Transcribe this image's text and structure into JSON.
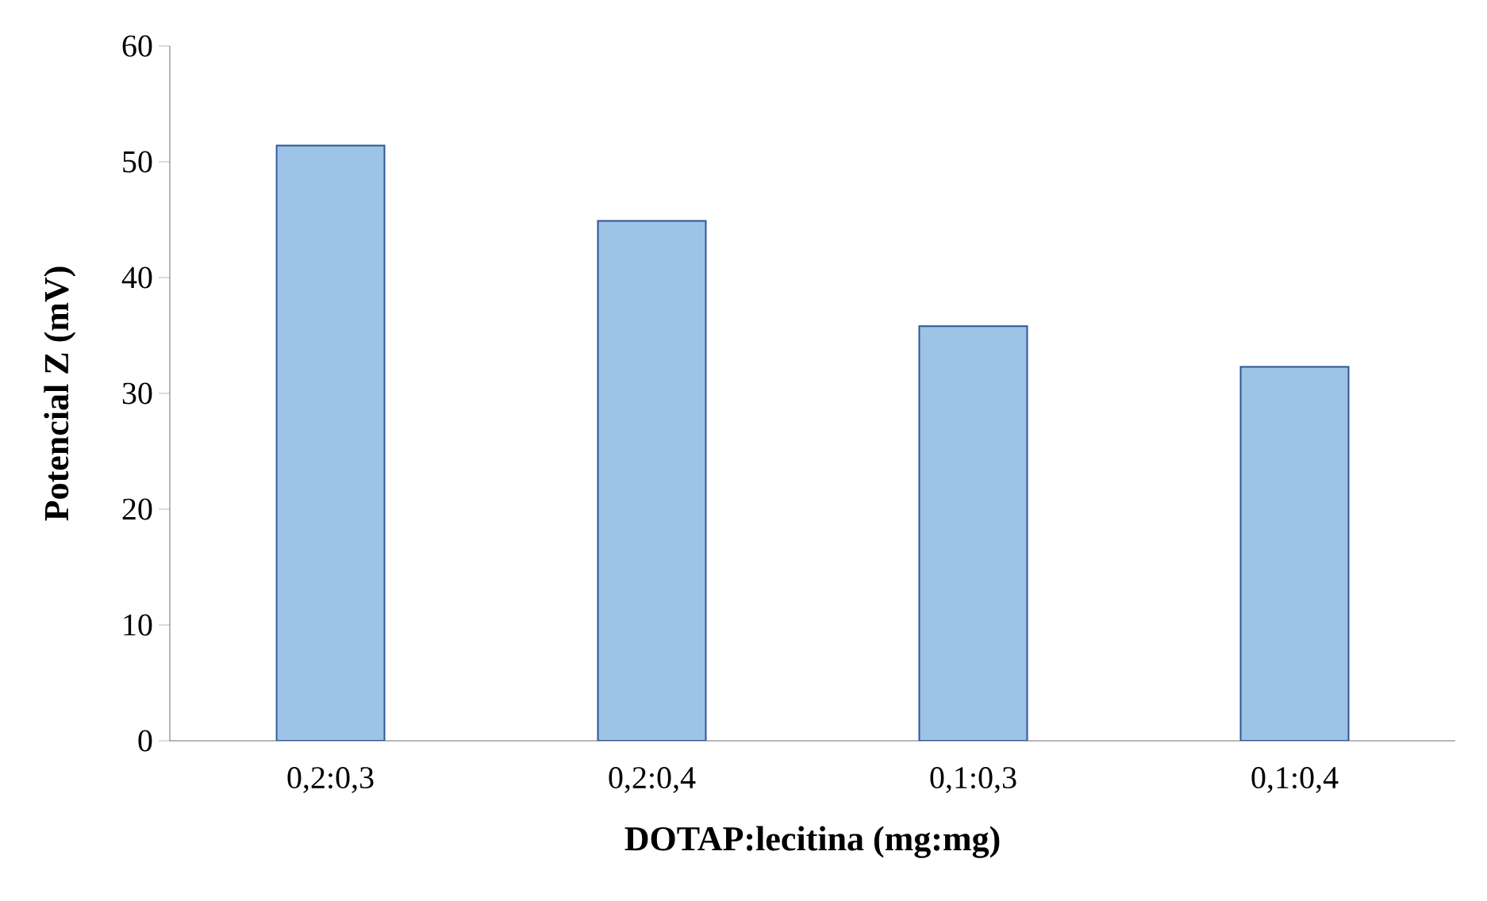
{
  "chart_data": {
    "type": "bar",
    "xlabel": "DOTAP:lecitina (mg:mg)",
    "ylabel": "Potencial Z (mV)",
    "categories": [
      "0,2:0,3",
      "0,2:0,4",
      "0,1:0,3",
      "0,1:0,4"
    ],
    "values": [
      51.4,
      44.9,
      35.8,
      32.3
    ],
    "color": "#9dc3e6",
    "ylim": [
      0,
      60
    ],
    "yticks": [
      0,
      10,
      20,
      30,
      40,
      50,
      60
    ],
    "grid": false
  }
}
